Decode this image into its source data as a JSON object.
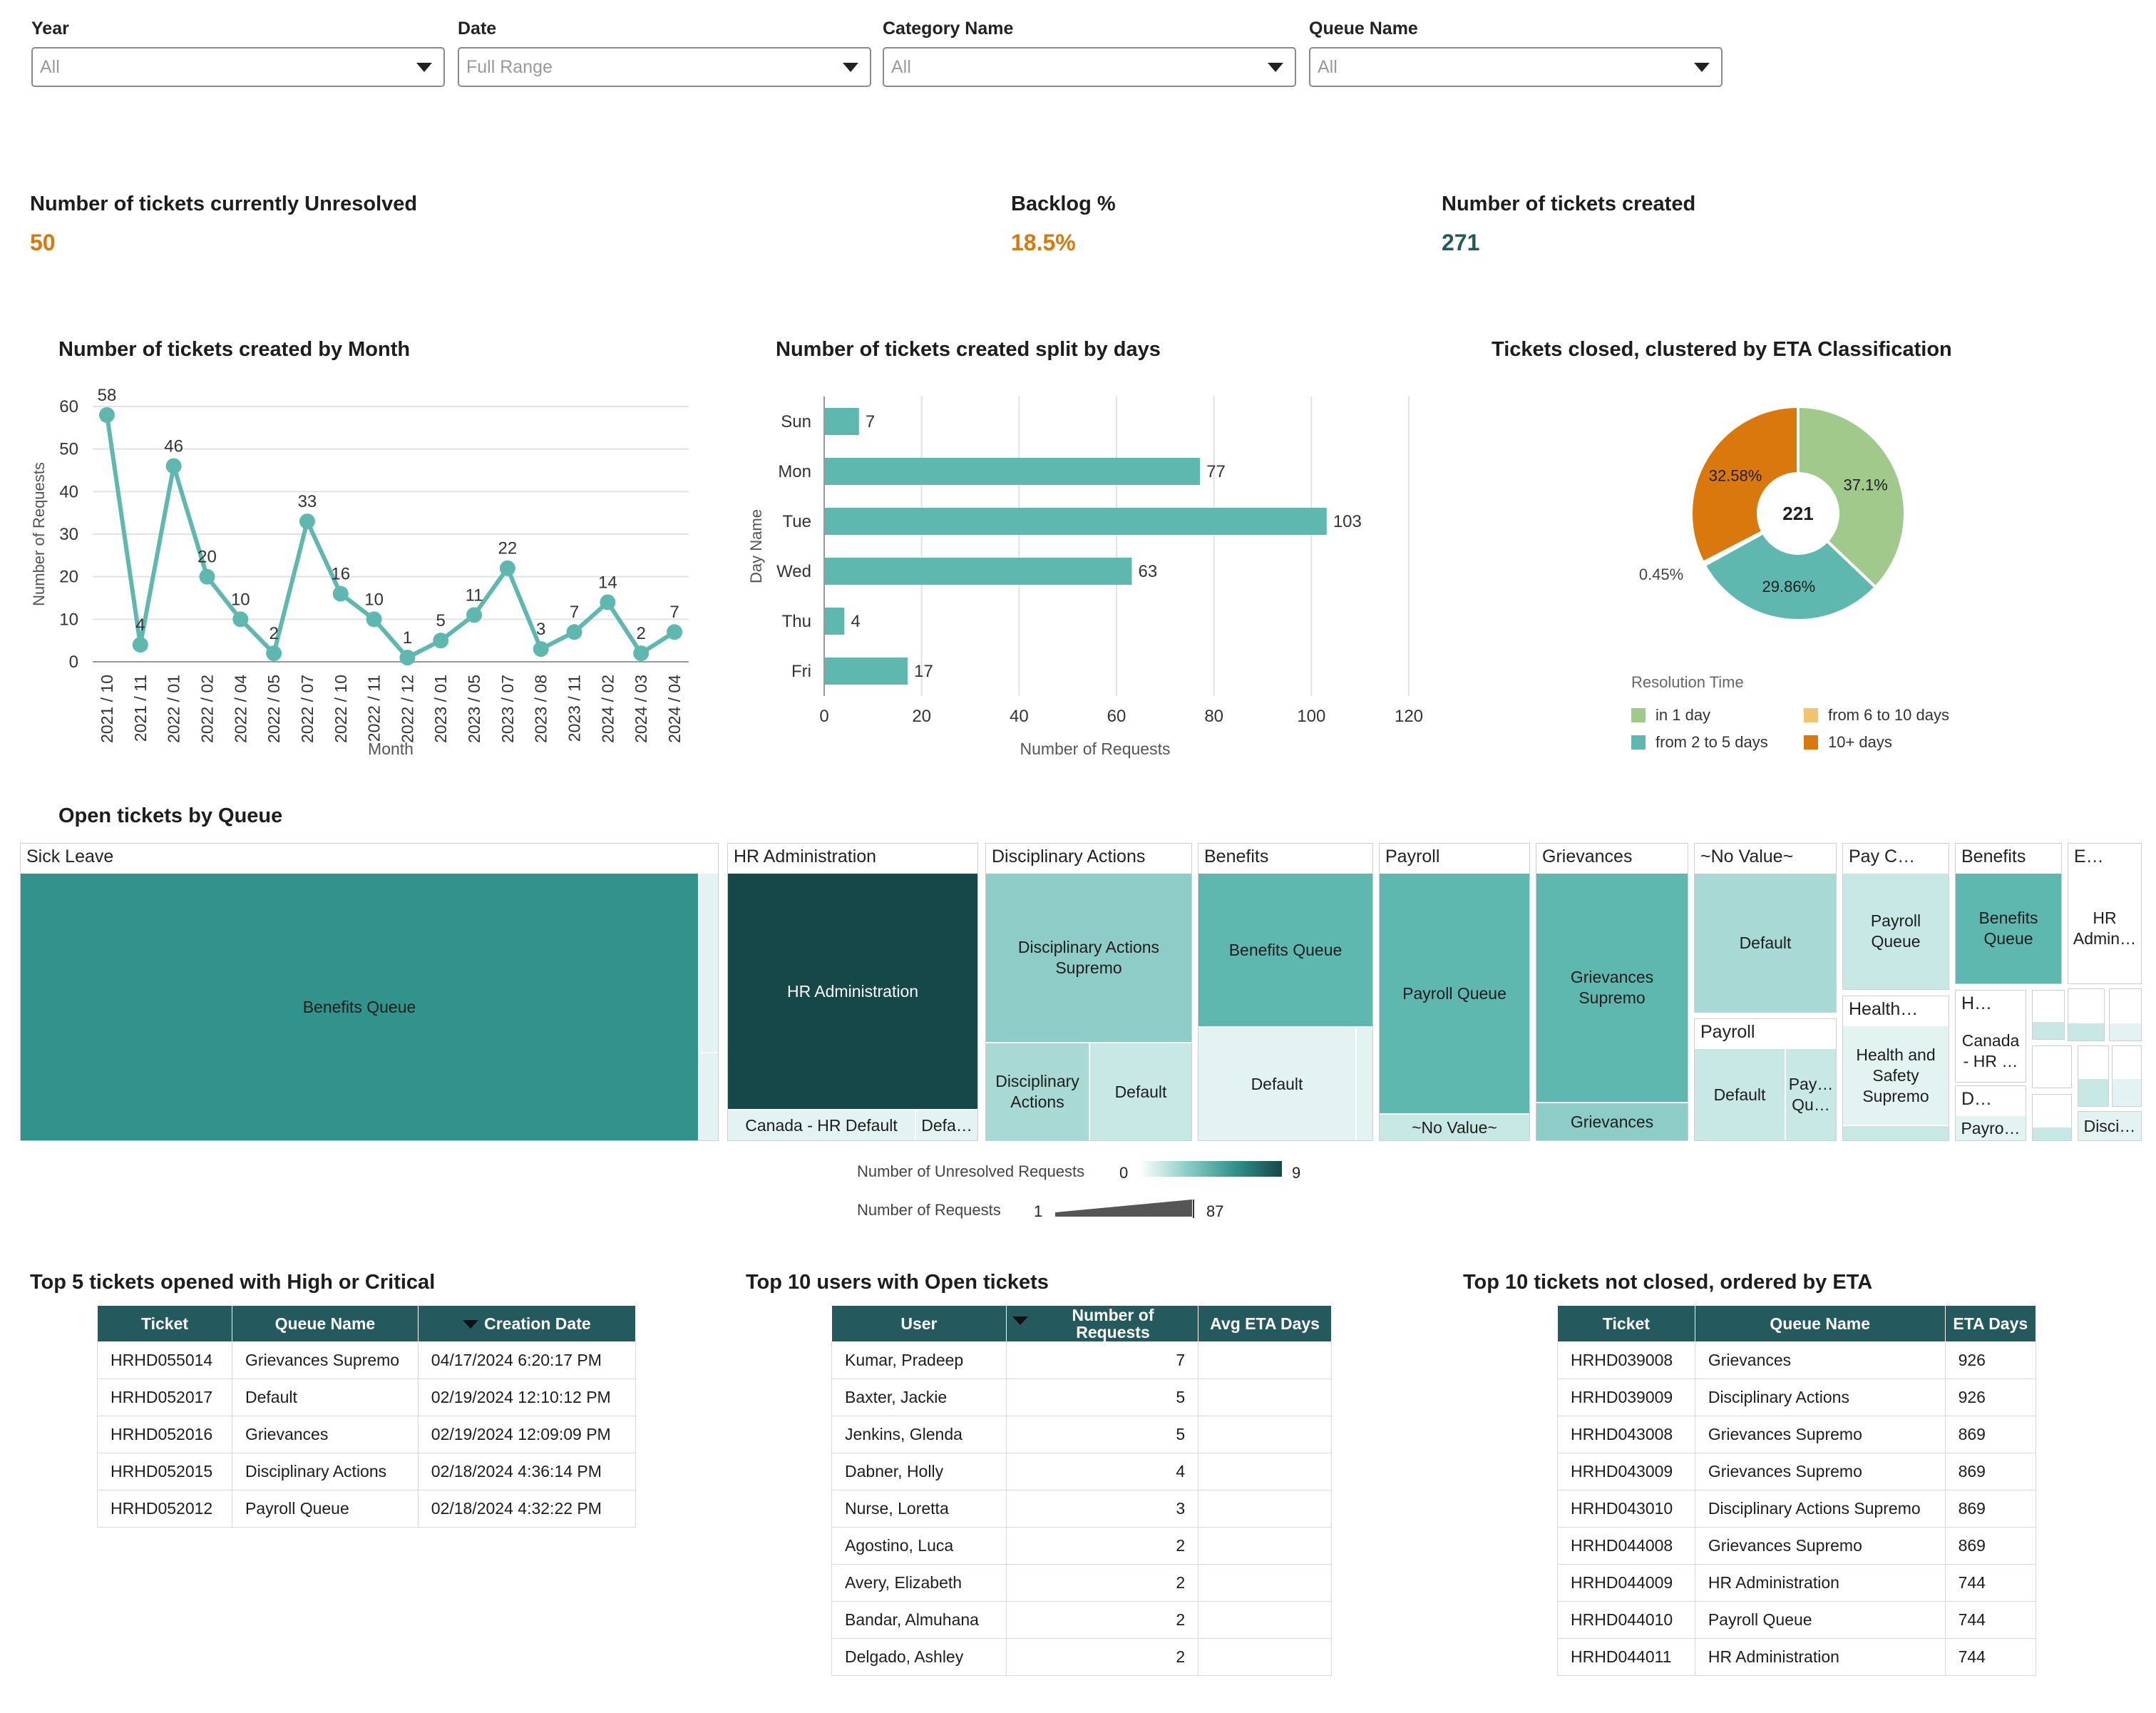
{
  "filters": [
    {
      "label": "Year",
      "value": "All"
    },
    {
      "label": "Date",
      "value": "Full Range"
    },
    {
      "label": "Category Name",
      "value": "All"
    },
    {
      "label": "Queue Name",
      "value": "All"
    }
  ],
  "kpis": [
    {
      "title": "Number of tickets currently Unresolved",
      "value": "50",
      "color": "#d9780c"
    },
    {
      "title": "Backlog %",
      "value": "18.5%",
      "color": "#d9780c"
    },
    {
      "title": "Number of tickets created",
      "value": "271",
      "color": "#245a5e"
    }
  ],
  "charts": {
    "line_title": "Number of tickets created by Month",
    "bar_title": "Number of tickets created split by days",
    "donut_title": "Tickets closed, clustered by ETA Classification",
    "treemap_title": "Open tickets by Queue"
  },
  "chart_data": [
    {
      "type": "line",
      "title": "Number of tickets created by Month",
      "xlabel": "Month",
      "ylabel": "Number of Requests",
      "ylim": [
        0,
        60
      ],
      "yticks": [
        "0",
        "10",
        "20",
        "30",
        "40",
        "50",
        "60"
      ],
      "grid": true,
      "x": [
        "2021 / 10",
        "2021 / 11",
        "2022 / 01",
        "2022 / 02",
        "2022 / 04",
        "2022 / 05",
        "2022 / 07",
        "2022 / 10",
        "2022 / 11",
        "2022 / 12",
        "2023 / 01",
        "2023 / 05",
        "2023 / 07",
        "2023 / 08",
        "2023 / 11",
        "2024 / 02",
        "2024 / 03",
        "2024 / 04"
      ],
      "values": [
        58,
        4,
        46,
        20,
        10,
        2,
        33,
        16,
        10,
        1,
        5,
        11,
        22,
        3,
        7,
        14,
        2,
        7
      ],
      "color": "#5fb8b0"
    },
    {
      "type": "bar",
      "orientation": "horizontal",
      "title": "Number of tickets created split by days",
      "xlabel": "Number of Requests",
      "ylabel": "Day Name",
      "xlim": [
        0,
        120
      ],
      "xticks": [
        "0",
        "20",
        "40",
        "60",
        "80",
        "100",
        "120"
      ],
      "grid": true,
      "categories": [
        "Sun",
        "Mon",
        "Tue",
        "Wed",
        "Thu",
        "Fri"
      ],
      "values": [
        7,
        77,
        103,
        63,
        4,
        17
      ],
      "color": "#5fb8b0"
    },
    {
      "type": "pie",
      "donut": true,
      "title": "Tickets closed, clustered by ETA Classification",
      "center_label": "221",
      "slices": [
        {
          "name": "in 1 day",
          "value": 37.1,
          "label": "37.1%",
          "color": "#a1c98b"
        },
        {
          "name": "from 2 to 5 days",
          "value": 29.86,
          "label": "29.86%",
          "color": "#5fb8b0"
        },
        {
          "name": "from 6 to 10 days",
          "value": 0.45,
          "label": "0.45%",
          "color": "#f2c46d"
        },
        {
          "name": "10+ days",
          "value": 32.58,
          "label": "32.58%",
          "color": "#d9780c"
        }
      ],
      "legend_title": "Resolution Time",
      "legend_position": "bottom"
    }
  ],
  "treemap": {
    "groups": [
      {
        "header": "Sick Leave",
        "cells": [
          {
            "label": "Benefits Queue"
          }
        ]
      },
      {
        "header": "HR Administration",
        "cells": [
          {
            "label": "HR Administration"
          },
          {
            "label": "Canada - HR Default"
          },
          {
            "label": "Defa…"
          }
        ]
      },
      {
        "header": "Disciplinary Actions",
        "cells": [
          {
            "label": "Disciplinary Actions Supremo"
          },
          {
            "label": "Disciplinary Actions"
          },
          {
            "label": "Default"
          }
        ]
      },
      {
        "header": "Benefits",
        "cells": [
          {
            "label": "Benefits Queue"
          },
          {
            "label": "Default"
          }
        ]
      },
      {
        "header": "Payroll",
        "cells": [
          {
            "label": "Payroll Queue"
          },
          {
            "label": "~No Value~"
          }
        ]
      },
      {
        "header": "Grievances",
        "cells": [
          {
            "label": "Grievances Supremo"
          },
          {
            "label": "Grievances"
          }
        ]
      },
      {
        "header": "~No Value~",
        "cells": [
          {
            "label": "Default"
          }
        ]
      },
      {
        "header": "Payroll",
        "cells": [
          {
            "label": "Default"
          },
          {
            "label": "Pay… Qu…"
          }
        ]
      },
      {
        "header": "Pay C…",
        "cells": [
          {
            "label": "Payroll Queue"
          }
        ]
      },
      {
        "header": "Health…",
        "cells": [
          {
            "label": "Health and Safety Supremo"
          }
        ]
      },
      {
        "header": "Benefits",
        "cells": [
          {
            "label": "Benefits Queue"
          }
        ]
      },
      {
        "header": "H…",
        "cells": [
          {
            "label": "Canada - HR …"
          }
        ]
      },
      {
        "header": "D…",
        "cells": [
          {
            "label": "Payro…"
          }
        ]
      },
      {
        "header": "E…",
        "cells": [
          {
            "label": "HR Admin…"
          },
          {
            "label": "Disci…"
          }
        ]
      }
    ],
    "legend": {
      "color_label": "Number of Unresolved Requests",
      "color_min": "0",
      "color_max": "9",
      "size_label": "Number of Requests",
      "size_min": "1",
      "size_max": "87"
    }
  },
  "tables": {
    "high_critical": {
      "title": "Top 5 tickets opened with High or Critical",
      "columns": [
        "Ticket",
        "Queue Name",
        "Creation Date"
      ],
      "rows": [
        [
          "HRHD055014",
          "Grievances Supremo",
          "04/17/2024 6:20:17 PM"
        ],
        [
          "HRHD052017",
          "Default",
          "02/19/2024 12:10:12 PM"
        ],
        [
          "HRHD052016",
          "Grievances",
          "02/19/2024 12:09:09 PM"
        ],
        [
          "HRHD052015",
          "Disciplinary Actions",
          "02/18/2024 4:36:14 PM"
        ],
        [
          "HRHD052012",
          "Payroll Queue",
          "02/18/2024 4:32:22 PM"
        ]
      ]
    },
    "users_open": {
      "title": "Top 10 users with Open tickets",
      "columns": [
        "User",
        "Number of Requests",
        "Avg ETA Days"
      ],
      "rows": [
        [
          "Kumar, Pradeep",
          "7",
          ""
        ],
        [
          "Baxter, Jackie",
          "5",
          ""
        ],
        [
          "Jenkins, Glenda",
          "5",
          ""
        ],
        [
          "Dabner, Holly",
          "4",
          ""
        ],
        [
          "Nurse, Loretta",
          "3",
          ""
        ],
        [
          "Agostino, Luca",
          "2",
          ""
        ],
        [
          "Avery, Elizabeth",
          "2",
          ""
        ],
        [
          "Bandar, Almuhana",
          "2",
          ""
        ],
        [
          "Delgado, Ashley",
          "2",
          ""
        ]
      ]
    },
    "not_closed": {
      "title": "Top 10 tickets not closed, ordered by ETA",
      "columns": [
        "Ticket",
        "Queue Name",
        "ETA Days"
      ],
      "rows": [
        [
          "HRHD039008",
          "Grievances",
          "926"
        ],
        [
          "HRHD039009",
          "Disciplinary Actions",
          "926"
        ],
        [
          "HRHD043008",
          "Grievances Supremo",
          "869"
        ],
        [
          "HRHD043009",
          "Grievances Supremo",
          "869"
        ],
        [
          "HRHD043010",
          "Disciplinary Actions Supremo",
          "869"
        ],
        [
          "HRHD044008",
          "Grievances Supremo",
          "869"
        ],
        [
          "HRHD044009",
          "HR Administration",
          "744"
        ],
        [
          "HRHD044010",
          "Payroll Queue",
          "744"
        ],
        [
          "HRHD044011",
          "HR Administration",
          "744"
        ]
      ]
    }
  }
}
